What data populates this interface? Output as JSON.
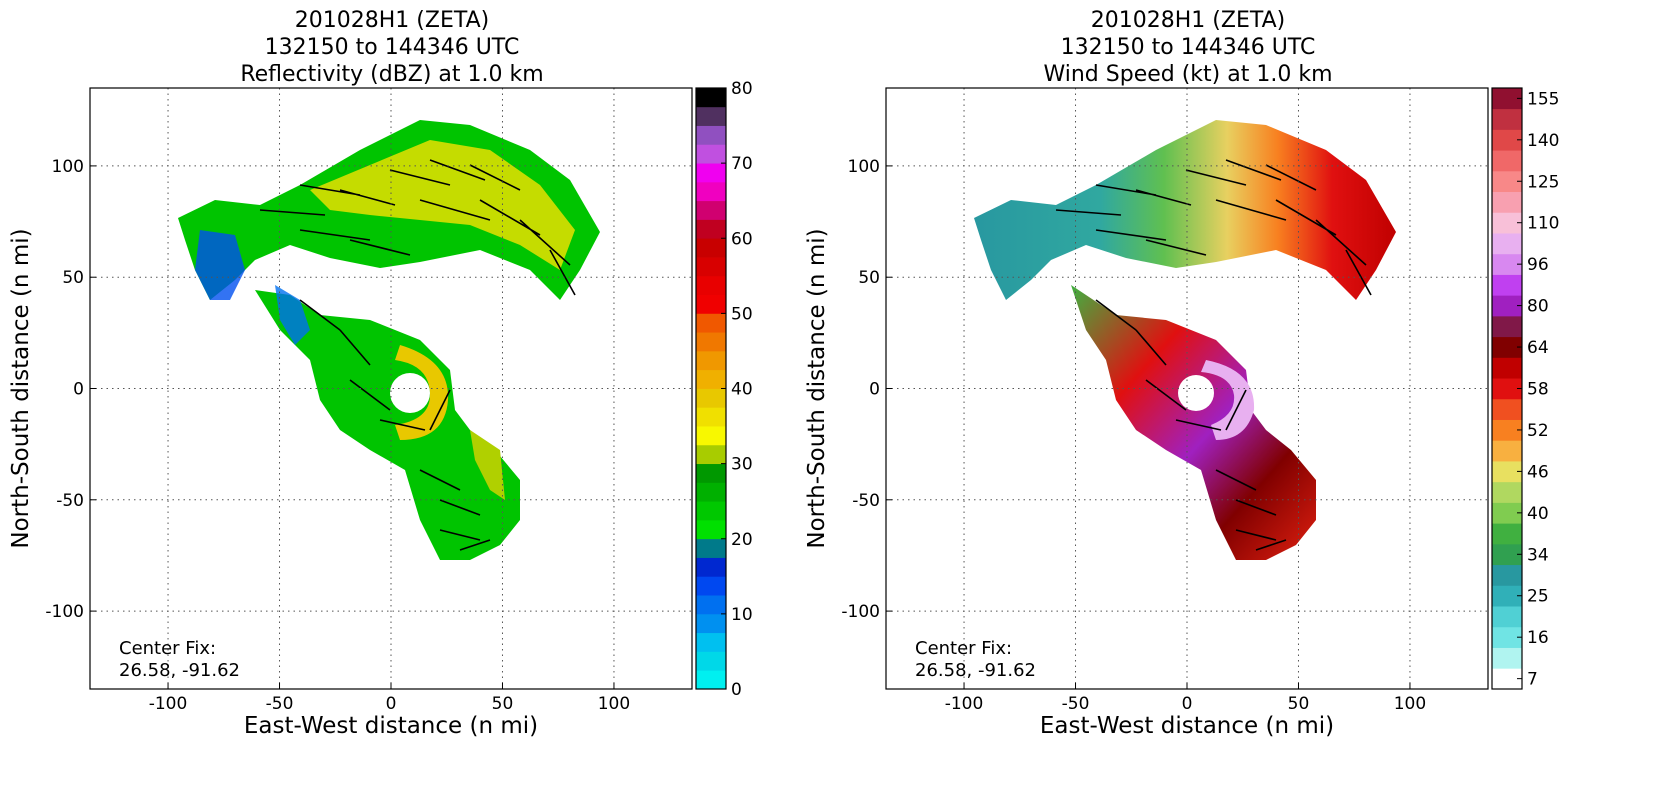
{
  "chart_data": [
    {
      "type": "radar",
      "title": [
        "201028H1 (ZETA)",
        "132150 to 144346 UTC",
        "Reflectivity (dBZ) at 1.0 km"
      ],
      "xlabel": "East-West distance (n mi)",
      "ylabel": "North-South distance (n mi)",
      "xlim": [
        -135,
        135
      ],
      "ylim": [
        -135,
        135
      ],
      "xticks": [
        -100,
        -50,
        0,
        50,
        100
      ],
      "yticks": [
        -100,
        -50,
        0,
        50,
        100
      ],
      "grid": true,
      "annotation": [
        "Center Fix:",
        "26.58, -91.62"
      ],
      "colorbar": {
        "scale": "linear",
        "lim": [
          0,
          80
        ],
        "ticks": [
          0,
          10,
          20,
          30,
          40,
          50,
          60,
          70,
          80
        ],
        "colors": [
          "#00f0f0",
          "#00d8e8",
          "#00c0f0",
          "#0090f0",
          "#0070f0",
          "#0048f0",
          "#0028d0",
          "#007a8a",
          "#00e000",
          "#00c800",
          "#00b000",
          "#009800",
          "#a8cc00",
          "#f8f800",
          "#f0e000",
          "#e8c800",
          "#f0b000",
          "#f09800",
          "#f07800",
          "#f05800",
          "#f00000",
          "#e80000",
          "#d80000",
          "#c80000",
          "#c00020",
          "#d00070",
          "#f000c0",
          "#f000f0",
          "#c050e0",
          "#9050c0",
          "#503060",
          "#000000"
        ]
      }
    },
    {
      "type": "radar",
      "title": [
        "201028H1 (ZETA)",
        "132150 to 144346 UTC",
        "Wind Speed (kt) at 1.0 km"
      ],
      "xlabel": "East-West distance (n mi)",
      "ylabel": "North-South distance (n mi)",
      "xlim": [
        -135,
        135
      ],
      "ylim": [
        -135,
        135
      ],
      "xticks": [
        -100,
        -50,
        0,
        50,
        100
      ],
      "yticks": [
        -100,
        -50,
        0,
        50,
        100
      ],
      "grid": true,
      "annotation": [
        "Center Fix:",
        "26.58, -91.62"
      ],
      "colorbar": {
        "scale": "categorical",
        "ticks": [
          7,
          16,
          25,
          34,
          40,
          46,
          52,
          58,
          64,
          80,
          96,
          110,
          125,
          140,
          155
        ],
        "colors": [
          "#ffffff",
          "#b0f4f0",
          "#70e4e4",
          "#50d0d4",
          "#30b0b8",
          "#2898a0",
          "#30a050",
          "#40b040",
          "#80cc50",
          "#b0d860",
          "#e8e060",
          "#f8b040",
          "#f88020",
          "#f05020",
          "#e01010",
          "#c00000",
          "#800000",
          "#801848",
          "#a020c0",
          "#c040f0",
          "#d888f0",
          "#e8b0f0",
          "#f8c0d8",
          "#f8a0b0",
          "#f88888",
          "#f06868",
          "#e04848",
          "#c03040",
          "#901030"
        ]
      }
    }
  ]
}
